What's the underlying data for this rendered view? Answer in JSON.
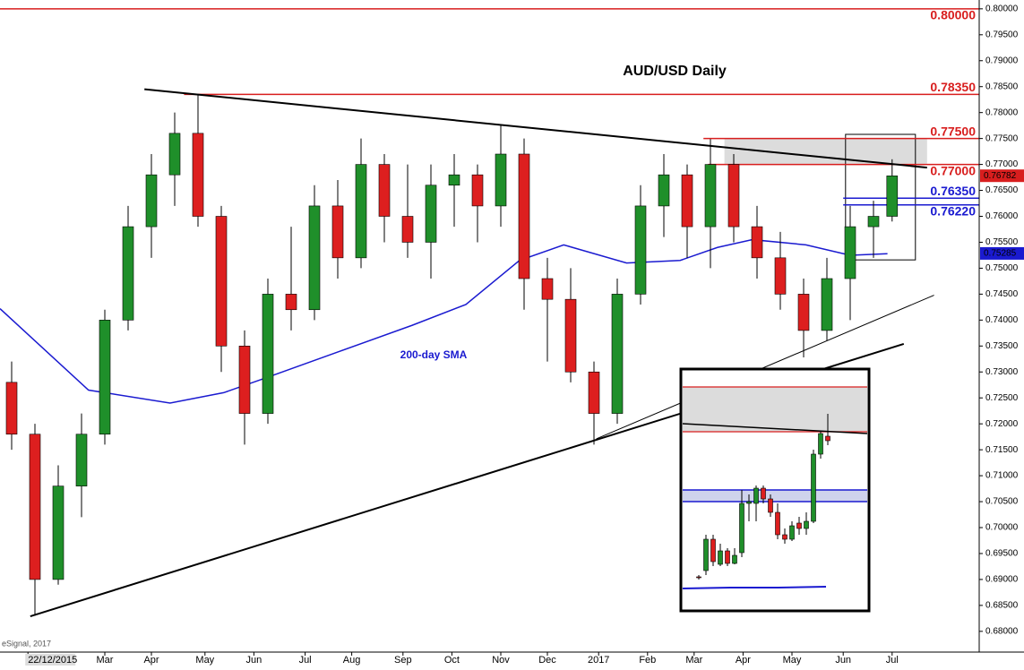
{
  "chart_data": {
    "type": "candlestick",
    "title": "AUD/USD Daily",
    "source": "eSignal, 2017",
    "up_color": "#1f8f2a",
    "down_color": "#dd1f1f",
    "xlim": [
      0,
      420
    ],
    "xticks": [
      {
        "value": 12,
        "label": "22/12/2015"
      },
      {
        "value": 45,
        "label": "Mar"
      },
      {
        "value": 65,
        "label": "Apr"
      },
      {
        "value": 88,
        "label": "May"
      },
      {
        "value": 109,
        "label": "Jun"
      },
      {
        "value": 131,
        "label": "Jul"
      },
      {
        "value": 151,
        "label": "Aug"
      },
      {
        "value": 173,
        "label": "Sep"
      },
      {
        "value": 194,
        "label": "Oct"
      },
      {
        "value": 215,
        "label": "Nov"
      },
      {
        "value": 235,
        "label": "Dec"
      },
      {
        "value": 257,
        "label": "2017"
      },
      {
        "value": 278,
        "label": "Feb"
      },
      {
        "value": 298,
        "label": "Mar"
      },
      {
        "value": 319,
        "label": "Apr"
      },
      {
        "value": 340,
        "label": "May"
      },
      {
        "value": 362,
        "label": "Jun"
      },
      {
        "value": 383,
        "label": "Jul"
      }
    ],
    "ylim": [
      0.676,
      0.8017
    ],
    "yticks": [
      {
        "value": 0.68,
        "label": "0.68000"
      },
      {
        "value": 0.685,
        "label": "0.68500"
      },
      {
        "value": 0.69,
        "label": "0.69000"
      },
      {
        "value": 0.695,
        "label": "0.69500"
      },
      {
        "value": 0.7,
        "label": "0.70000"
      },
      {
        "value": 0.705,
        "label": "0.70500"
      },
      {
        "value": 0.71,
        "label": "0.71000"
      },
      {
        "value": 0.715,
        "label": "0.71500"
      },
      {
        "value": 0.72,
        "label": "0.72000"
      },
      {
        "value": 0.725,
        "label": "0.72500"
      },
      {
        "value": 0.73,
        "label": "0.73000"
      },
      {
        "value": 0.735,
        "label": "0.73500"
      },
      {
        "value": 0.74,
        "label": "0.74000"
      },
      {
        "value": 0.745,
        "label": "0.74500"
      },
      {
        "value": 0.75,
        "label": "0.75000"
      },
      {
        "value": 0.755,
        "label": "0.75500"
      },
      {
        "value": 0.76,
        "label": "0.76000"
      },
      {
        "value": 0.765,
        "label": "0.76500"
      },
      {
        "value": 0.77,
        "label": "0.77000"
      },
      {
        "value": 0.775,
        "label": "0.77500"
      },
      {
        "value": 0.78,
        "label": "0.78000"
      },
      {
        "value": 0.785,
        "label": "0.78500"
      },
      {
        "value": 0.79,
        "label": "0.79000"
      },
      {
        "value": 0.795,
        "label": "0.79500"
      },
      {
        "value": 0.8,
        "label": "0.80000"
      }
    ],
    "candles": {
      "x": [
        5,
        15,
        25,
        35,
        45,
        55,
        65,
        75,
        85,
        95,
        105,
        115,
        125,
        135,
        145,
        155,
        165,
        175,
        185,
        195,
        205,
        215,
        225,
        235,
        245,
        255,
        265,
        275,
        285,
        295,
        305,
        315,
        325,
        335,
        345,
        355,
        365,
        375,
        383
      ],
      "open": [
        0.728,
        0.718,
        0.69,
        0.708,
        0.718,
        0.74,
        0.758,
        0.768,
        0.776,
        0.76,
        0.735,
        0.722,
        0.745,
        0.742,
        0.762,
        0.752,
        0.77,
        0.76,
        0.755,
        0.766,
        0.768,
        0.762,
        0.772,
        0.748,
        0.744,
        0.73,
        0.722,
        0.745,
        0.762,
        0.768,
        0.758,
        0.77,
        0.758,
        0.752,
        0.745,
        0.738,
        0.748,
        0.758,
        0.76
      ],
      "high": [
        0.732,
        0.72,
        0.712,
        0.722,
        0.742,
        0.762,
        0.772,
        0.78,
        0.7835,
        0.762,
        0.738,
        0.748,
        0.758,
        0.766,
        0.767,
        0.775,
        0.772,
        0.77,
        0.77,
        0.772,
        0.77,
        0.7777,
        0.775,
        0.752,
        0.75,
        0.732,
        0.748,
        0.766,
        0.772,
        0.77,
        0.7749,
        0.772,
        0.762,
        0.757,
        0.748,
        0.752,
        0.762,
        0.763,
        0.771
      ],
      "low": [
        0.715,
        0.683,
        0.689,
        0.702,
        0.716,
        0.738,
        0.752,
        0.762,
        0.758,
        0.73,
        0.716,
        0.72,
        0.738,
        0.74,
        0.748,
        0.75,
        0.755,
        0.752,
        0.748,
        0.758,
        0.755,
        0.758,
        0.742,
        0.732,
        0.728,
        0.716,
        0.72,
        0.743,
        0.756,
        0.752,
        0.75,
        0.755,
        0.748,
        0.742,
        0.7328,
        0.736,
        0.74,
        0.752,
        0.759
      ],
      "close": [
        0.718,
        0.69,
        0.708,
        0.718,
        0.74,
        0.758,
        0.768,
        0.776,
        0.76,
        0.735,
        0.722,
        0.745,
        0.742,
        0.762,
        0.752,
        0.77,
        0.76,
        0.755,
        0.766,
        0.768,
        0.762,
        0.772,
        0.748,
        0.744,
        0.73,
        0.722,
        0.745,
        0.762,
        0.768,
        0.758,
        0.77,
        0.758,
        0.752,
        0.745,
        0.738,
        0.748,
        0.758,
        0.76,
        0.7678
      ]
    },
    "sma": {
      "name": "200-day SMA",
      "color": "#1a1ad0",
      "x": [
        0,
        38,
        73,
        96,
        115,
        146,
        177,
        200,
        223,
        242,
        269,
        292,
        308,
        323,
        346,
        365,
        381
      ],
      "values": [
        0.7422,
        0.7265,
        0.724,
        0.726,
        0.729,
        0.734,
        0.739,
        0.743,
        0.7515,
        0.7545,
        0.751,
        0.7515,
        0.754,
        0.7555,
        0.7545,
        0.7525,
        0.7528
      ]
    },
    "levels": [
      {
        "value": 0.8,
        "label": "0.80000",
        "color": "#d81e1e",
        "from": 0
      },
      {
        "value": 0.7835,
        "label": "0.78350",
        "color": "#d81e1e",
        "from": 79
      },
      {
        "value": 0.775,
        "label": "0.77500",
        "color": "#d81e1e",
        "from": 302
      },
      {
        "value": 0.77,
        "label": "0.77000",
        "color": "#d81e1e",
        "from": 304
      },
      {
        "value": 0.7635,
        "label": "0.76350",
        "color": "#1a1ad0",
        "from": 362
      },
      {
        "value": 0.7622,
        "label": "0.76220",
        "color": "#1a1ad0",
        "from": 362
      }
    ],
    "last_price": {
      "value": 0.76782,
      "label": "0.76782",
      "color": "#d81e1e"
    },
    "sma_last": {
      "value": 0.75285,
      "label": "0.75285",
      "color": "#1a1ad0"
    },
    "trendlines": [
      {
        "x": [
          62,
          398
        ],
        "y": [
          0.7845,
          0.7694
        ],
        "weight": 2
      },
      {
        "x": [
          13,
          388
        ],
        "y": [
          0.6829,
          0.7354
        ],
        "weight": 2
      },
      {
        "x": [
          256,
          401
        ],
        "y": [
          0.7171,
          0.7448
        ],
        "weight": 1
      }
    ],
    "zone": {
      "x": [
        311,
        398
      ],
      "y": [
        0.77,
        0.775
      ]
    },
    "box": {
      "x": [
        363,
        393
      ],
      "y": [
        0.7516,
        0.7758
      ]
    },
    "inset": {
      "ylim": [
        0.75,
        0.777
      ],
      "zone": [
        0.77,
        0.775
      ],
      "band": [
        0.7622,
        0.7635
      ],
      "levels_red": [
        0.775,
        0.77
      ],
      "levels_blue": [
        0.7635,
        0.7622
      ],
      "trendline": [
        0.7709,
        0.7698
      ],
      "sma": [
        0.7525,
        0.7526,
        0.7526,
        0.7527
      ],
      "open": [
        0.7538,
        0.7545,
        0.758,
        0.7552,
        0.7567,
        0.7553,
        0.7565,
        0.762,
        0.762,
        0.7637,
        0.7625,
        0.761,
        0.7585,
        0.758,
        0.7598,
        0.7592,
        0.76,
        0.7675,
        0.7695
      ],
      "high": [
        0.754,
        0.7585,
        0.7585,
        0.7575,
        0.757,
        0.757,
        0.7635,
        0.763,
        0.764,
        0.764,
        0.763,
        0.762,
        0.7592,
        0.76,
        0.7605,
        0.761,
        0.768,
        0.77,
        0.772
      ],
      "low": [
        0.7535,
        0.754,
        0.755,
        0.755,
        0.755,
        0.7552,
        0.756,
        0.76,
        0.76,
        0.762,
        0.7605,
        0.758,
        0.7575,
        0.7578,
        0.7585,
        0.7585,
        0.7598,
        0.767,
        0.7685
      ],
      "close": [
        0.7537,
        0.758,
        0.7555,
        0.7567,
        0.7553,
        0.7562,
        0.762,
        0.7622,
        0.7637,
        0.7625,
        0.761,
        0.7585,
        0.758,
        0.7595,
        0.7592,
        0.76,
        0.7675,
        0.7698,
        0.769
      ]
    }
  }
}
